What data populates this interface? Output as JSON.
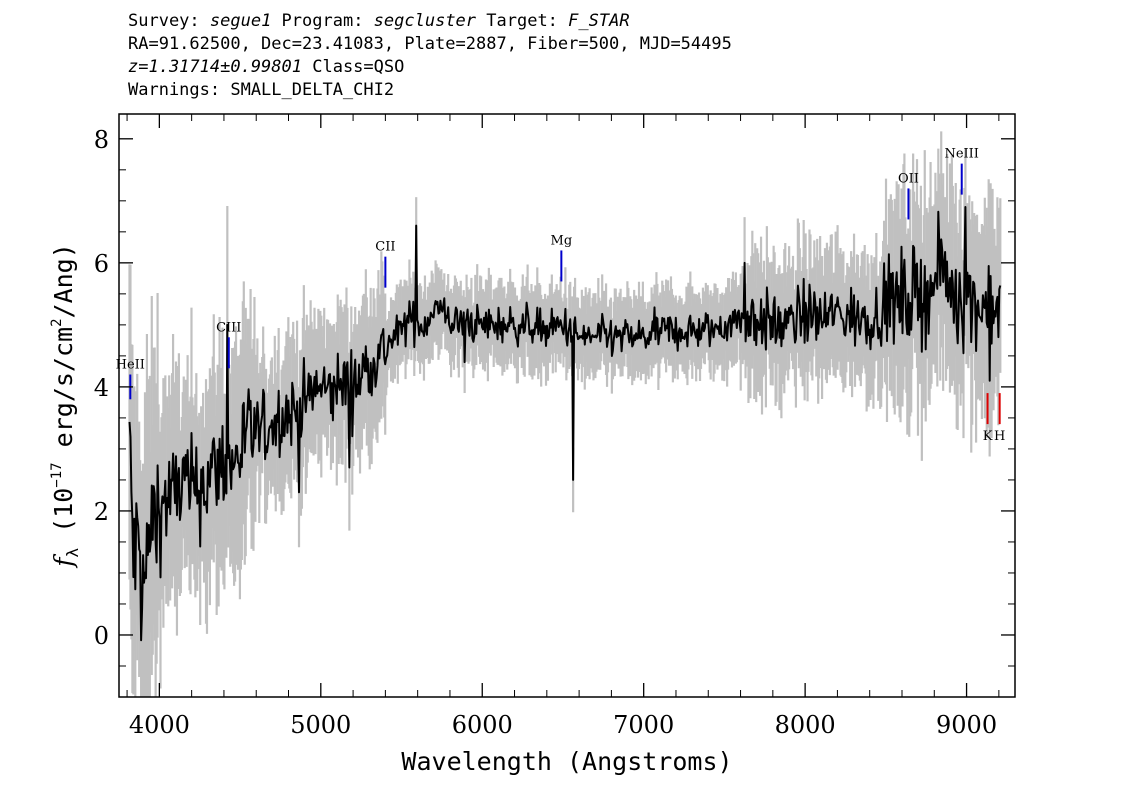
{
  "header": {
    "line1": {
      "survey_label": "Survey: ",
      "survey": "segue1",
      "program_label": " Program: ",
      "program": "segcluster",
      "target_label": " Target: ",
      "target": "F_STAR"
    },
    "line2": "RA=91.62500, Dec=23.41083, Plate=2887, Fiber=500, MJD=54495",
    "line3": {
      "z": "z=1.31714±0.99801",
      "class": " Class=QSO"
    },
    "line4": "Warnings: SMALL_DELTA_CHI2"
  },
  "chart_data": {
    "type": "line",
    "xlabel": "Wavelength (Angstroms)",
    "ylabel_parts": {
      "f": "f",
      "sub": "λ",
      "a": " (10",
      "exp1": "−17",
      "b": " erg/s/cm",
      "exp2": "2",
      "c": "/Ang)"
    },
    "xlim": [
      3750,
      9300
    ],
    "ylim": [
      -1.0,
      8.4
    ],
    "xticks": [
      4000,
      5000,
      6000,
      7000,
      8000,
      9000
    ],
    "yticks": [
      0,
      2,
      4,
      6,
      8
    ],
    "anchors": [
      [
        3820,
        2.8
      ],
      [
        3840,
        1.2
      ],
      [
        3870,
        1.5
      ],
      [
        3900,
        0.5
      ],
      [
        3930,
        1.4
      ],
      [
        3960,
        1.8
      ],
      [
        4000,
        2.0
      ],
      [
        4050,
        2.2
      ],
      [
        4100,
        2.3
      ],
      [
        4150,
        2.5
      ],
      [
        4200,
        2.3
      ],
      [
        4250,
        2.4
      ],
      [
        4300,
        2.5
      ],
      [
        4350,
        2.7
      ],
      [
        4400,
        2.8
      ],
      [
        4450,
        2.7
      ],
      [
        4500,
        3.0
      ],
      [
        4550,
        3.2
      ],
      [
        4600,
        3.3
      ],
      [
        4650,
        3.3
      ],
      [
        4700,
        3.4
      ],
      [
        4750,
        3.5
      ],
      [
        4800,
        3.6
      ],
      [
        4850,
        3.6
      ],
      [
        4900,
        3.8
      ],
      [
        4950,
        3.9
      ],
      [
        5000,
        4.0
      ],
      [
        5050,
        3.9
      ],
      [
        5100,
        4.0
      ],
      [
        5150,
        4.1
      ],
      [
        5200,
        4.0
      ],
      [
        5250,
        4.2
      ],
      [
        5300,
        4.4
      ],
      [
        5350,
        4.5
      ],
      [
        5400,
        4.6
      ],
      [
        5450,
        4.8
      ],
      [
        5500,
        4.9
      ],
      [
        5550,
        5.1
      ],
      [
        5600,
        5.0
      ],
      [
        5650,
        5.0
      ],
      [
        5700,
        5.3
      ],
      [
        5750,
        5.2
      ],
      [
        5800,
        5.1
      ],
      [
        5850,
        5.0
      ],
      [
        5900,
        5.1
      ],
      [
        5950,
        5.0
      ],
      [
        6000,
        5.0
      ],
      [
        6100,
        5.0
      ],
      [
        6200,
        5.0
      ],
      [
        6300,
        5.0
      ],
      [
        6400,
        4.9
      ],
      [
        6500,
        5.0
      ],
      [
        6600,
        4.8
      ],
      [
        6700,
        4.8
      ],
      [
        6800,
        4.8
      ],
      [
        6900,
        4.8
      ],
      [
        7000,
        4.8
      ],
      [
        7100,
        4.9
      ],
      [
        7200,
        4.9
      ],
      [
        7300,
        4.9
      ],
      [
        7400,
        4.9
      ],
      [
        7500,
        5.0
      ],
      [
        7600,
        5.1
      ],
      [
        7700,
        5.1
      ],
      [
        7800,
        5.0
      ],
      [
        7900,
        5.0
      ],
      [
        8000,
        5.2
      ],
      [
        8100,
        5.1
      ],
      [
        8200,
        5.2
      ],
      [
        8300,
        5.1
      ],
      [
        8400,
        5.1
      ],
      [
        8500,
        5.3
      ],
      [
        8600,
        5.4
      ],
      [
        8700,
        5.5
      ],
      [
        8800,
        5.6
      ],
      [
        8850,
        5.9
      ],
      [
        8900,
        5.6
      ],
      [
        9000,
        5.4
      ],
      [
        9100,
        5.3
      ],
      [
        9150,
        5.4
      ],
      [
        9200,
        5.2
      ]
    ],
    "features": [
      {
        "x": 4420,
        "y": 5.0
      },
      {
        "x": 4860,
        "y": 2.3
      },
      {
        "x": 5175,
        "y": 2.7
      },
      {
        "x": 5590,
        "y": 6.6
      },
      {
        "x": 5890,
        "y": 4.4
      },
      {
        "x": 6563,
        "y": 2.5
      },
      {
        "x": 7620,
        "y": 6.0
      },
      {
        "x": 8830,
        "y": 6.3
      },
      {
        "x": 8990,
        "y": 6.9
      },
      {
        "x": 9140,
        "y": 4.1
      }
    ],
    "lines": [
      {
        "name": "HeII",
        "x": 3820,
        "y_top": 4.2,
        "y_bot": 3.8,
        "color": "#0000cc",
        "label_pos": "above"
      },
      {
        "name": "CIII",
        "x": 4430,
        "y_top": 4.8,
        "y_bot": 4.3,
        "color": "#0000cc",
        "label_pos": "above"
      },
      {
        "name": "CII",
        "x": 5400,
        "y_top": 6.1,
        "y_bot": 5.6,
        "color": "#0000cc",
        "label_pos": "above"
      },
      {
        "name": "Mg",
        "x": 6490,
        "y_top": 6.2,
        "y_bot": 5.7,
        "color": "#0000cc",
        "label_pos": "above"
      },
      {
        "name": "OII",
        "x": 8640,
        "y_top": 7.2,
        "y_bot": 6.7,
        "color": "#0000cc",
        "label_pos": "above"
      },
      {
        "name": "NeIII",
        "x": 8970,
        "y_top": 7.6,
        "y_bot": 7.1,
        "color": "#0000cc",
        "label_pos": "above"
      },
      {
        "name": "K",
        "x": 9130,
        "y_top": 3.9,
        "y_bot": 3.4,
        "color": "#dd0000",
        "label_pos": "below"
      },
      {
        "name": "H",
        "x": 9205,
        "y_top": 3.9,
        "y_bot": 3.4,
        "color": "#dd0000",
        "label_pos": "below"
      }
    ],
    "colors": {
      "spectrum": "#000000",
      "noise": "#c0c0c0",
      "emission": "#0000cc",
      "absorption": "#dd0000"
    }
  }
}
